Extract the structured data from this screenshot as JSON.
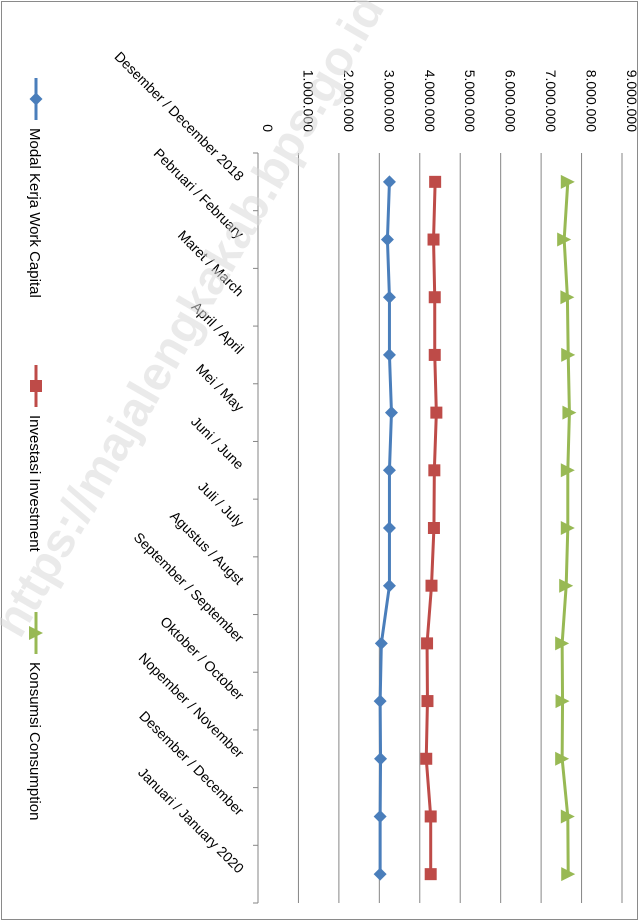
{
  "chart_data": {
    "type": "line",
    "title": "",
    "xlabel": "",
    "ylabel": "",
    "categories": [
      "Desember / December 2018",
      "Pebruari / February",
      "Maret / March",
      "April / April",
      "Mei / May",
      "Juni / June",
      "Juli / July",
      "Agustus / Augst",
      "September / September",
      "Oktober / October",
      "Nopember / November",
      "Desember / December",
      "Januari / January 2020"
    ],
    "ylim": [
      0,
      9000000
    ],
    "y_ticks": [
      0,
      1000000,
      2000000,
      3000000,
      4000000,
      5000000,
      6000000,
      7000000,
      8000000,
      9000000
    ],
    "y_tick_labels": [
      "0",
      "1.000.000",
      "2.000.000",
      "3.000.000",
      "4.000.000",
      "5.000.000",
      "6.000.000",
      "7.000.000",
      "8.000.000",
      "9.000.000"
    ],
    "grid": true,
    "legend_position": "bottom",
    "series": [
      {
        "name": "Modal Kerja Work Capital",
        "color": "#4a7ebb",
        "marker": "diamond",
        "values": [
          3250000,
          3200000,
          3250000,
          3250000,
          3300000,
          3250000,
          3250000,
          3250000,
          3050000,
          3020000,
          3030000,
          3020000,
          3020000
        ]
      },
      {
        "name": "Investasi Investment",
        "color": "#be4b48",
        "marker": "square",
        "values": [
          4380000,
          4340000,
          4370000,
          4370000,
          4410000,
          4360000,
          4350000,
          4290000,
          4180000,
          4190000,
          4160000,
          4270000,
          4270000
        ]
      },
      {
        "name": "Konsumsi Consumption",
        "color": "#98b954",
        "marker": "triangle",
        "values": [
          7660000,
          7570000,
          7650000,
          7670000,
          7700000,
          7660000,
          7660000,
          7620000,
          7520000,
          7530000,
          7520000,
          7660000,
          7670000
        ]
      }
    ]
  },
  "watermark": "https://majalengkakab.bps.go.id"
}
